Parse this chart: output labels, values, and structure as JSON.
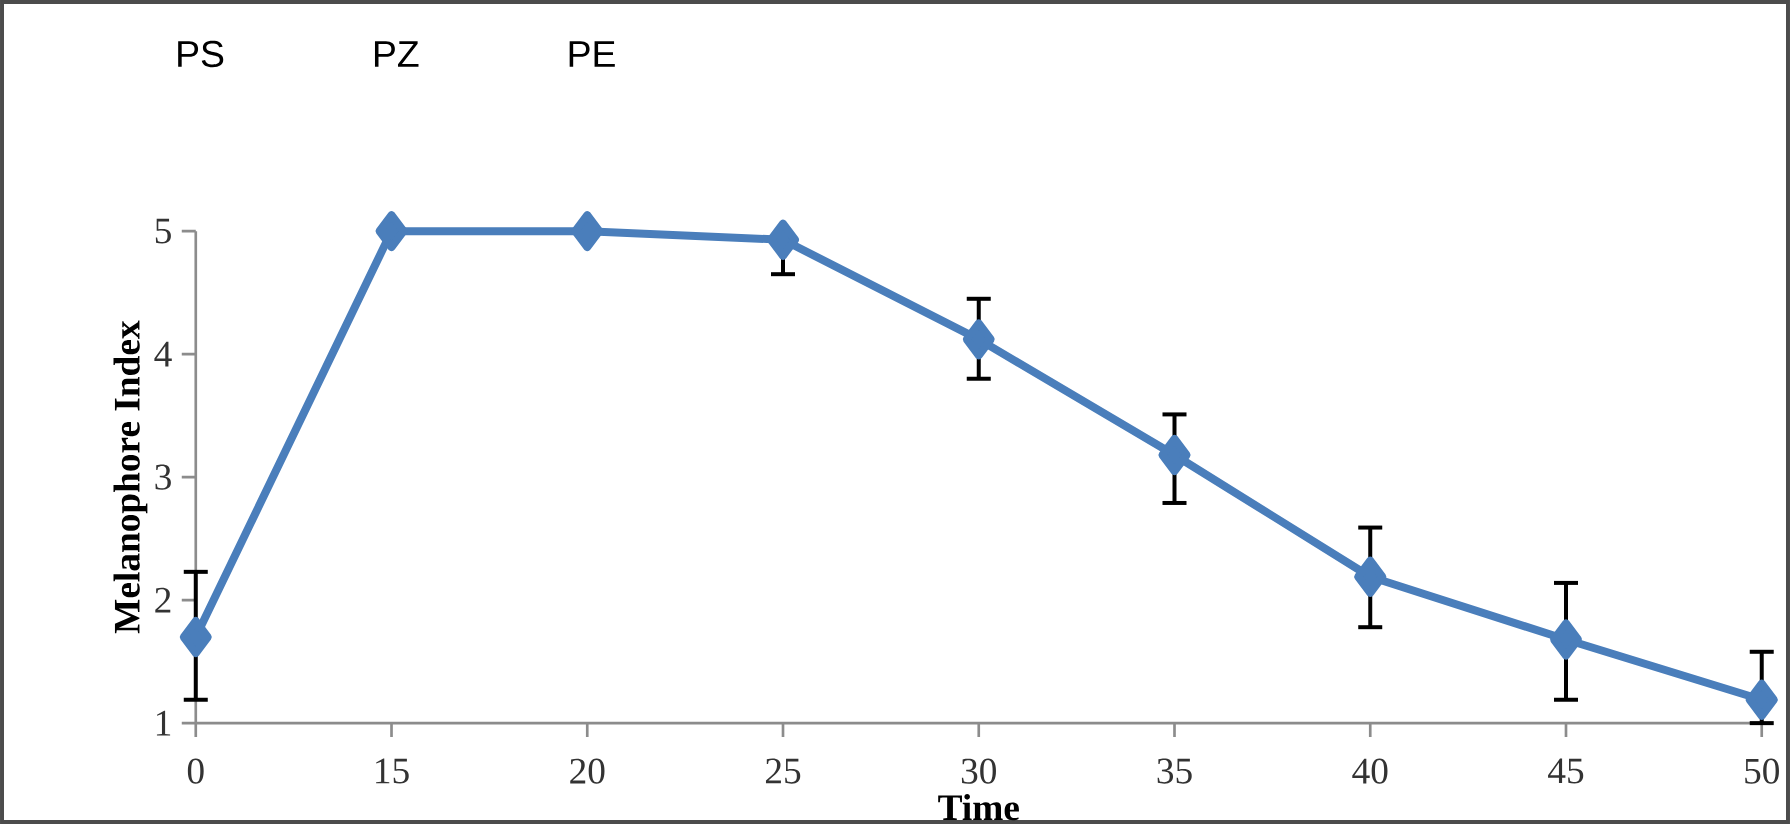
{
  "chart_data": {
    "type": "line",
    "xlabel": "Time",
    "ylabel": "Melanophore Index",
    "categories": [
      "0",
      "15",
      "20",
      "25",
      "30",
      "35",
      "40",
      "45",
      "50"
    ],
    "series": [
      {
        "color": "#4a7ebb",
        "values": [
          1.7,
          5.0,
          5.0,
          4.93,
          4.12,
          3.18,
          2.19,
          1.68,
          1.19
        ],
        "errors": [
          [
            1.19,
            2.23
          ],
          null,
          null,
          [
            4.65,
            4.93
          ],
          [
            3.8,
            4.45
          ],
          [
            2.79,
            3.51
          ],
          [
            1.78,
            2.59
          ],
          [
            1.19,
            2.14
          ],
          [
            1.0,
            1.58
          ]
        ]
      }
    ],
    "ylim": [
      1,
      5
    ],
    "yticks": [
      1,
      2,
      3,
      4,
      5
    ],
    "marker": "diamond",
    "line_style": "solid",
    "grid": false,
    "annotations": [
      "PS",
      "PZ",
      "PE"
    ]
  }
}
